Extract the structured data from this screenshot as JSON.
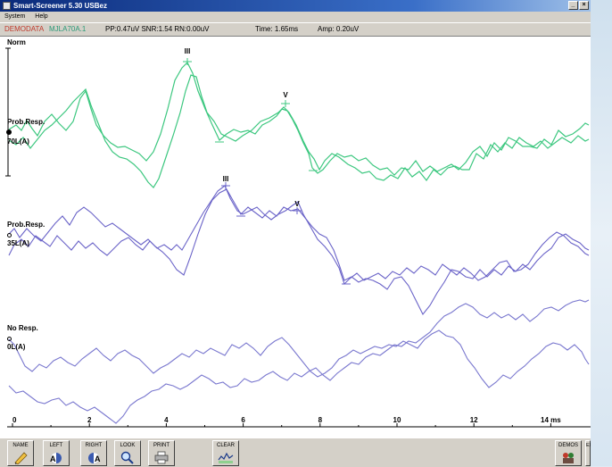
{
  "window": {
    "title": "Smart-Screener 5.30 USBez"
  },
  "menu": [
    "System",
    "Help"
  ],
  "info": {
    "patient": "DEMODATA",
    "file": "MJLA70A.1",
    "pp": "PP:0.47uV SNR:1.54 RN:0.00uV",
    "time": "Time:  1.65ms",
    "amp": "Amp:  0.20uV"
  },
  "traces": [
    {
      "label": "Prob.Resp.",
      "level": "70L(A)",
      "color": "#3cc77f"
    },
    {
      "label": "Prob.Resp.",
      "level": "35L(A)",
      "color": "#6a63c8"
    },
    {
      "label": "No Resp.",
      "level": "0L(A)",
      "color": "#7a78cf"
    }
  ],
  "scale_label": "Norm",
  "wave_markers": {
    "top": [
      "III",
      "V"
    ],
    "middle": [
      "III",
      "V"
    ]
  },
  "x_axis": {
    "ticks": [
      "0",
      "2",
      "4",
      "6",
      "8",
      "10",
      "12",
      "14 ms"
    ],
    "range": [
      0,
      15
    ]
  },
  "toolbar": {
    "name": "NAME",
    "left": "LEFT",
    "right": "RIGHT",
    "look": "LOOK",
    "print": "PRINT",
    "clear": "CLEAR",
    "demos": "DEMOS",
    "exit": "EXIT"
  },
  "colors": {
    "green": "#3cc77f",
    "purple": "#6a63c8",
    "lavender": "#7a78cf",
    "titlebar": "#0a2a7a"
  },
  "icons": [
    "pencil-icon",
    "left-ear-icon",
    "right-ear-icon",
    "magnifier-icon",
    "printer-icon",
    "clear-waveform-icon",
    "demos-icon",
    "exit-door-icon"
  ]
}
